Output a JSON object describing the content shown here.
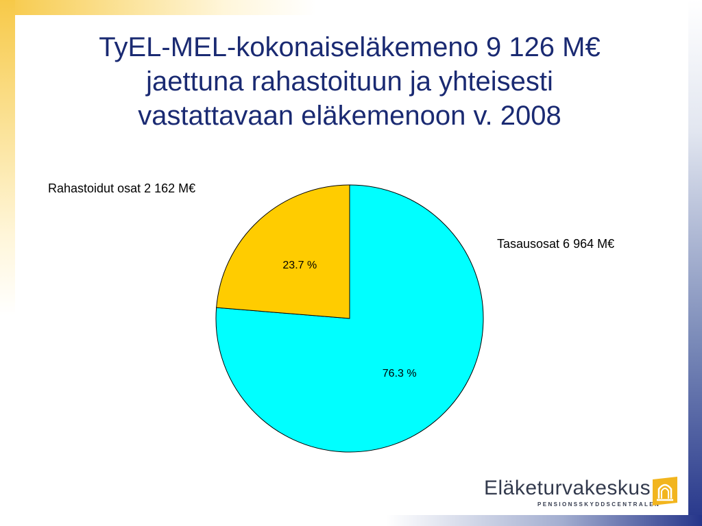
{
  "chart_data": {
    "type": "pie",
    "title_lines": [
      "TyEL-MEL-kokonaiseläkemeno 9 126 M€",
      "jaettuna rahastoituun ja yhteisesti",
      "vastattavaan eläkemenoon v. 2008"
    ],
    "slices": [
      {
        "name": "Tasausosat 6 964 M€",
        "value": 76.3,
        "pct_label": "76.3 %",
        "color": "#00ffff"
      },
      {
        "name": "Rahastoidut osat 2 162 M€",
        "value": 23.7,
        "pct_label": "23.7 %",
        "color": "#ffcc00"
      }
    ],
    "start_angle_deg": 0,
    "direction": "clockwise"
  },
  "logo": {
    "name": "Eläketurvakeskus",
    "subtitle": "PENSIONSSKYDDSCENTRALEN",
    "color": "#f2b51e"
  }
}
